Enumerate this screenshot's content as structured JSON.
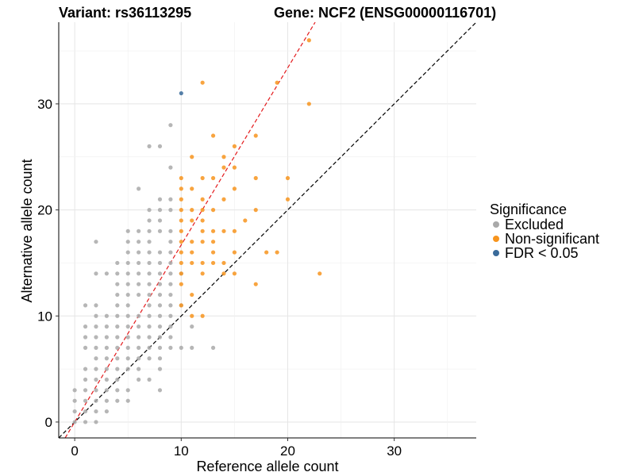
{
  "chart_data": {
    "type": "scatter",
    "title_left": "Variant: rs36113295",
    "title_right": "Gene: NCF2 (ENSG00000116701)",
    "xlabel": "Reference allele count",
    "ylabel": "Alternative allele count",
    "xlim": [
      -1.5,
      37.7
    ],
    "ylim": [
      -1.5,
      37.7
    ],
    "xticks": [
      0,
      10,
      20,
      30
    ],
    "yticks": [
      0,
      10,
      20,
      30
    ],
    "grid": true,
    "legend": {
      "title": "Significance",
      "position": "right",
      "entries": [
        {
          "label": "Excluded",
          "color": "#a9a9a9"
        },
        {
          "label": "Non-significant",
          "color": "#f7941d"
        },
        {
          "label": "FDR < 0.05",
          "color": "#3a6b9a"
        }
      ]
    },
    "reference_lines": [
      {
        "name": "identity",
        "intercept": 0,
        "slope": 1.0,
        "color": "#000000",
        "style": "dashed"
      },
      {
        "name": "fit",
        "intercept": 0,
        "slope": 1.67,
        "color": "#e41a1c",
        "style": "dashed"
      }
    ],
    "series": [
      {
        "name": "Excluded",
        "color": "#a9a9a9",
        "points": [
          [
            0,
            0
          ],
          [
            0,
            1
          ],
          [
            0,
            2
          ],
          [
            0,
            3
          ],
          [
            1,
            0
          ],
          [
            1,
            1
          ],
          [
            1,
            2
          ],
          [
            1,
            3
          ],
          [
            1,
            4
          ],
          [
            1,
            5
          ],
          [
            1,
            7
          ],
          [
            1,
            8
          ],
          [
            1,
            9
          ],
          [
            1,
            11
          ],
          [
            2,
            0
          ],
          [
            2,
            1
          ],
          [
            2,
            2
          ],
          [
            2,
            3
          ],
          [
            2,
            4
          ],
          [
            2,
            5
          ],
          [
            2,
            6
          ],
          [
            2,
            7
          ],
          [
            2,
            8
          ],
          [
            2,
            9
          ],
          [
            2,
            10
          ],
          [
            2,
            11
          ],
          [
            2,
            14
          ],
          [
            2,
            17
          ],
          [
            3,
            1
          ],
          [
            3,
            2
          ],
          [
            3,
            3
          ],
          [
            3,
            4
          ],
          [
            3,
            5
          ],
          [
            3,
            6
          ],
          [
            3,
            7
          ],
          [
            3,
            8
          ],
          [
            3,
            9
          ],
          [
            3,
            10
          ],
          [
            3,
            14
          ],
          [
            4,
            2
          ],
          [
            4,
            3
          ],
          [
            4,
            4
          ],
          [
            4,
            5
          ],
          [
            4,
            6
          ],
          [
            4,
            7
          ],
          [
            4,
            8
          ],
          [
            4,
            9
          ],
          [
            4,
            10
          ],
          [
            4,
            11
          ],
          [
            4,
            12
          ],
          [
            4,
            13
          ],
          [
            4,
            14
          ],
          [
            4,
            15
          ],
          [
            5,
            2
          ],
          [
            5,
            3
          ],
          [
            5,
            5
          ],
          [
            5,
            6
          ],
          [
            5,
            7
          ],
          [
            5,
            8
          ],
          [
            5,
            9
          ],
          [
            5,
            10
          ],
          [
            5,
            11
          ],
          [
            5,
            12
          ],
          [
            5,
            13
          ],
          [
            5,
            14
          ],
          [
            5,
            15
          ],
          [
            5,
            16
          ],
          [
            5,
            17
          ],
          [
            5,
            18
          ],
          [
            6,
            4
          ],
          [
            6,
            5
          ],
          [
            6,
            6
          ],
          [
            6,
            7
          ],
          [
            6,
            8
          ],
          [
            6,
            9
          ],
          [
            6,
            10
          ],
          [
            6,
            12
          ],
          [
            6,
            13
          ],
          [
            6,
            14
          ],
          [
            6,
            15
          ],
          [
            6,
            16
          ],
          [
            6,
            17
          ],
          [
            6,
            18
          ],
          [
            6,
            22
          ],
          [
            7,
            4
          ],
          [
            7,
            6
          ],
          [
            7,
            7
          ],
          [
            7,
            8
          ],
          [
            7,
            9
          ],
          [
            7,
            10
          ],
          [
            7,
            11
          ],
          [
            7,
            12
          ],
          [
            7,
            13
          ],
          [
            7,
            14
          ],
          [
            7,
            15
          ],
          [
            7,
            16
          ],
          [
            7,
            17
          ],
          [
            7,
            18
          ],
          [
            7,
            19
          ],
          [
            7,
            20
          ],
          [
            7,
            26
          ],
          [
            8,
            3
          ],
          [
            8,
            5
          ],
          [
            8,
            6
          ],
          [
            8,
            7
          ],
          [
            8,
            8
          ],
          [
            8,
            9
          ],
          [
            8,
            10
          ],
          [
            8,
            11
          ],
          [
            8,
            12
          ],
          [
            8,
            13
          ],
          [
            8,
            14
          ],
          [
            8,
            15
          ],
          [
            8,
            16
          ],
          [
            8,
            18
          ],
          [
            8,
            19
          ],
          [
            8,
            20
          ],
          [
            8,
            21
          ],
          [
            8,
            26
          ],
          [
            9,
            7
          ],
          [
            9,
            8
          ],
          [
            9,
            9
          ],
          [
            9,
            10
          ],
          [
            9,
            11
          ],
          [
            9,
            12
          ],
          [
            9,
            13
          ],
          [
            9,
            14
          ],
          [
            9,
            15
          ],
          [
            9,
            16
          ],
          [
            9,
            17
          ],
          [
            9,
            18
          ],
          [
            9,
            20
          ],
          [
            9,
            21
          ],
          [
            9,
            24
          ],
          [
            9,
            28
          ],
          [
            10,
            7
          ],
          [
            10,
            11
          ],
          [
            10,
            14
          ],
          [
            11,
            7
          ],
          [
            11,
            9
          ],
          [
            13,
            7
          ]
        ]
      },
      {
        "name": "Non-significant",
        "color": "#f7941d",
        "points": [
          [
            10,
            11
          ],
          [
            10,
            13
          ],
          [
            10,
            14
          ],
          [
            10,
            15
          ],
          [
            10,
            16
          ],
          [
            10,
            17
          ],
          [
            10,
            18
          ],
          [
            10,
            19
          ],
          [
            10,
            20
          ],
          [
            10,
            21
          ],
          [
            10,
            22
          ],
          [
            10,
            23
          ],
          [
            11,
            10
          ],
          [
            11,
            12
          ],
          [
            11,
            15
          ],
          [
            11,
            16
          ],
          [
            11,
            17
          ],
          [
            11,
            19
          ],
          [
            11,
            20
          ],
          [
            11,
            22
          ],
          [
            11,
            25
          ],
          [
            12,
            10
          ],
          [
            12,
            14
          ],
          [
            12,
            15
          ],
          [
            12,
            17
          ],
          [
            12,
            18
          ],
          [
            12,
            19
          ],
          [
            12,
            20
          ],
          [
            12,
            21
          ],
          [
            12,
            23
          ],
          [
            12,
            32
          ],
          [
            13,
            15
          ],
          [
            13,
            16
          ],
          [
            13,
            17
          ],
          [
            13,
            18
          ],
          [
            13,
            20
          ],
          [
            13,
            23
          ],
          [
            13,
            27
          ],
          [
            14,
            14
          ],
          [
            14,
            15
          ],
          [
            14,
            18
          ],
          [
            14,
            21
          ],
          [
            14,
            24
          ],
          [
            14,
            25
          ],
          [
            15,
            14
          ],
          [
            15,
            16
          ],
          [
            15,
            18
          ],
          [
            15,
            22
          ],
          [
            15,
            24
          ],
          [
            15,
            26
          ],
          [
            16,
            19
          ],
          [
            17,
            13
          ],
          [
            17,
            20
          ],
          [
            17,
            23
          ],
          [
            17,
            27
          ],
          [
            18,
            16
          ],
          [
            19,
            16
          ],
          [
            19,
            32
          ],
          [
            20,
            21
          ],
          [
            20,
            23
          ],
          [
            22,
            30
          ],
          [
            22,
            36
          ],
          [
            23,
            14
          ]
        ]
      },
      {
        "name": "FDR < 0.05",
        "color": "#3a6b9a",
        "points": [
          [
            10,
            31
          ]
        ]
      }
    ]
  }
}
